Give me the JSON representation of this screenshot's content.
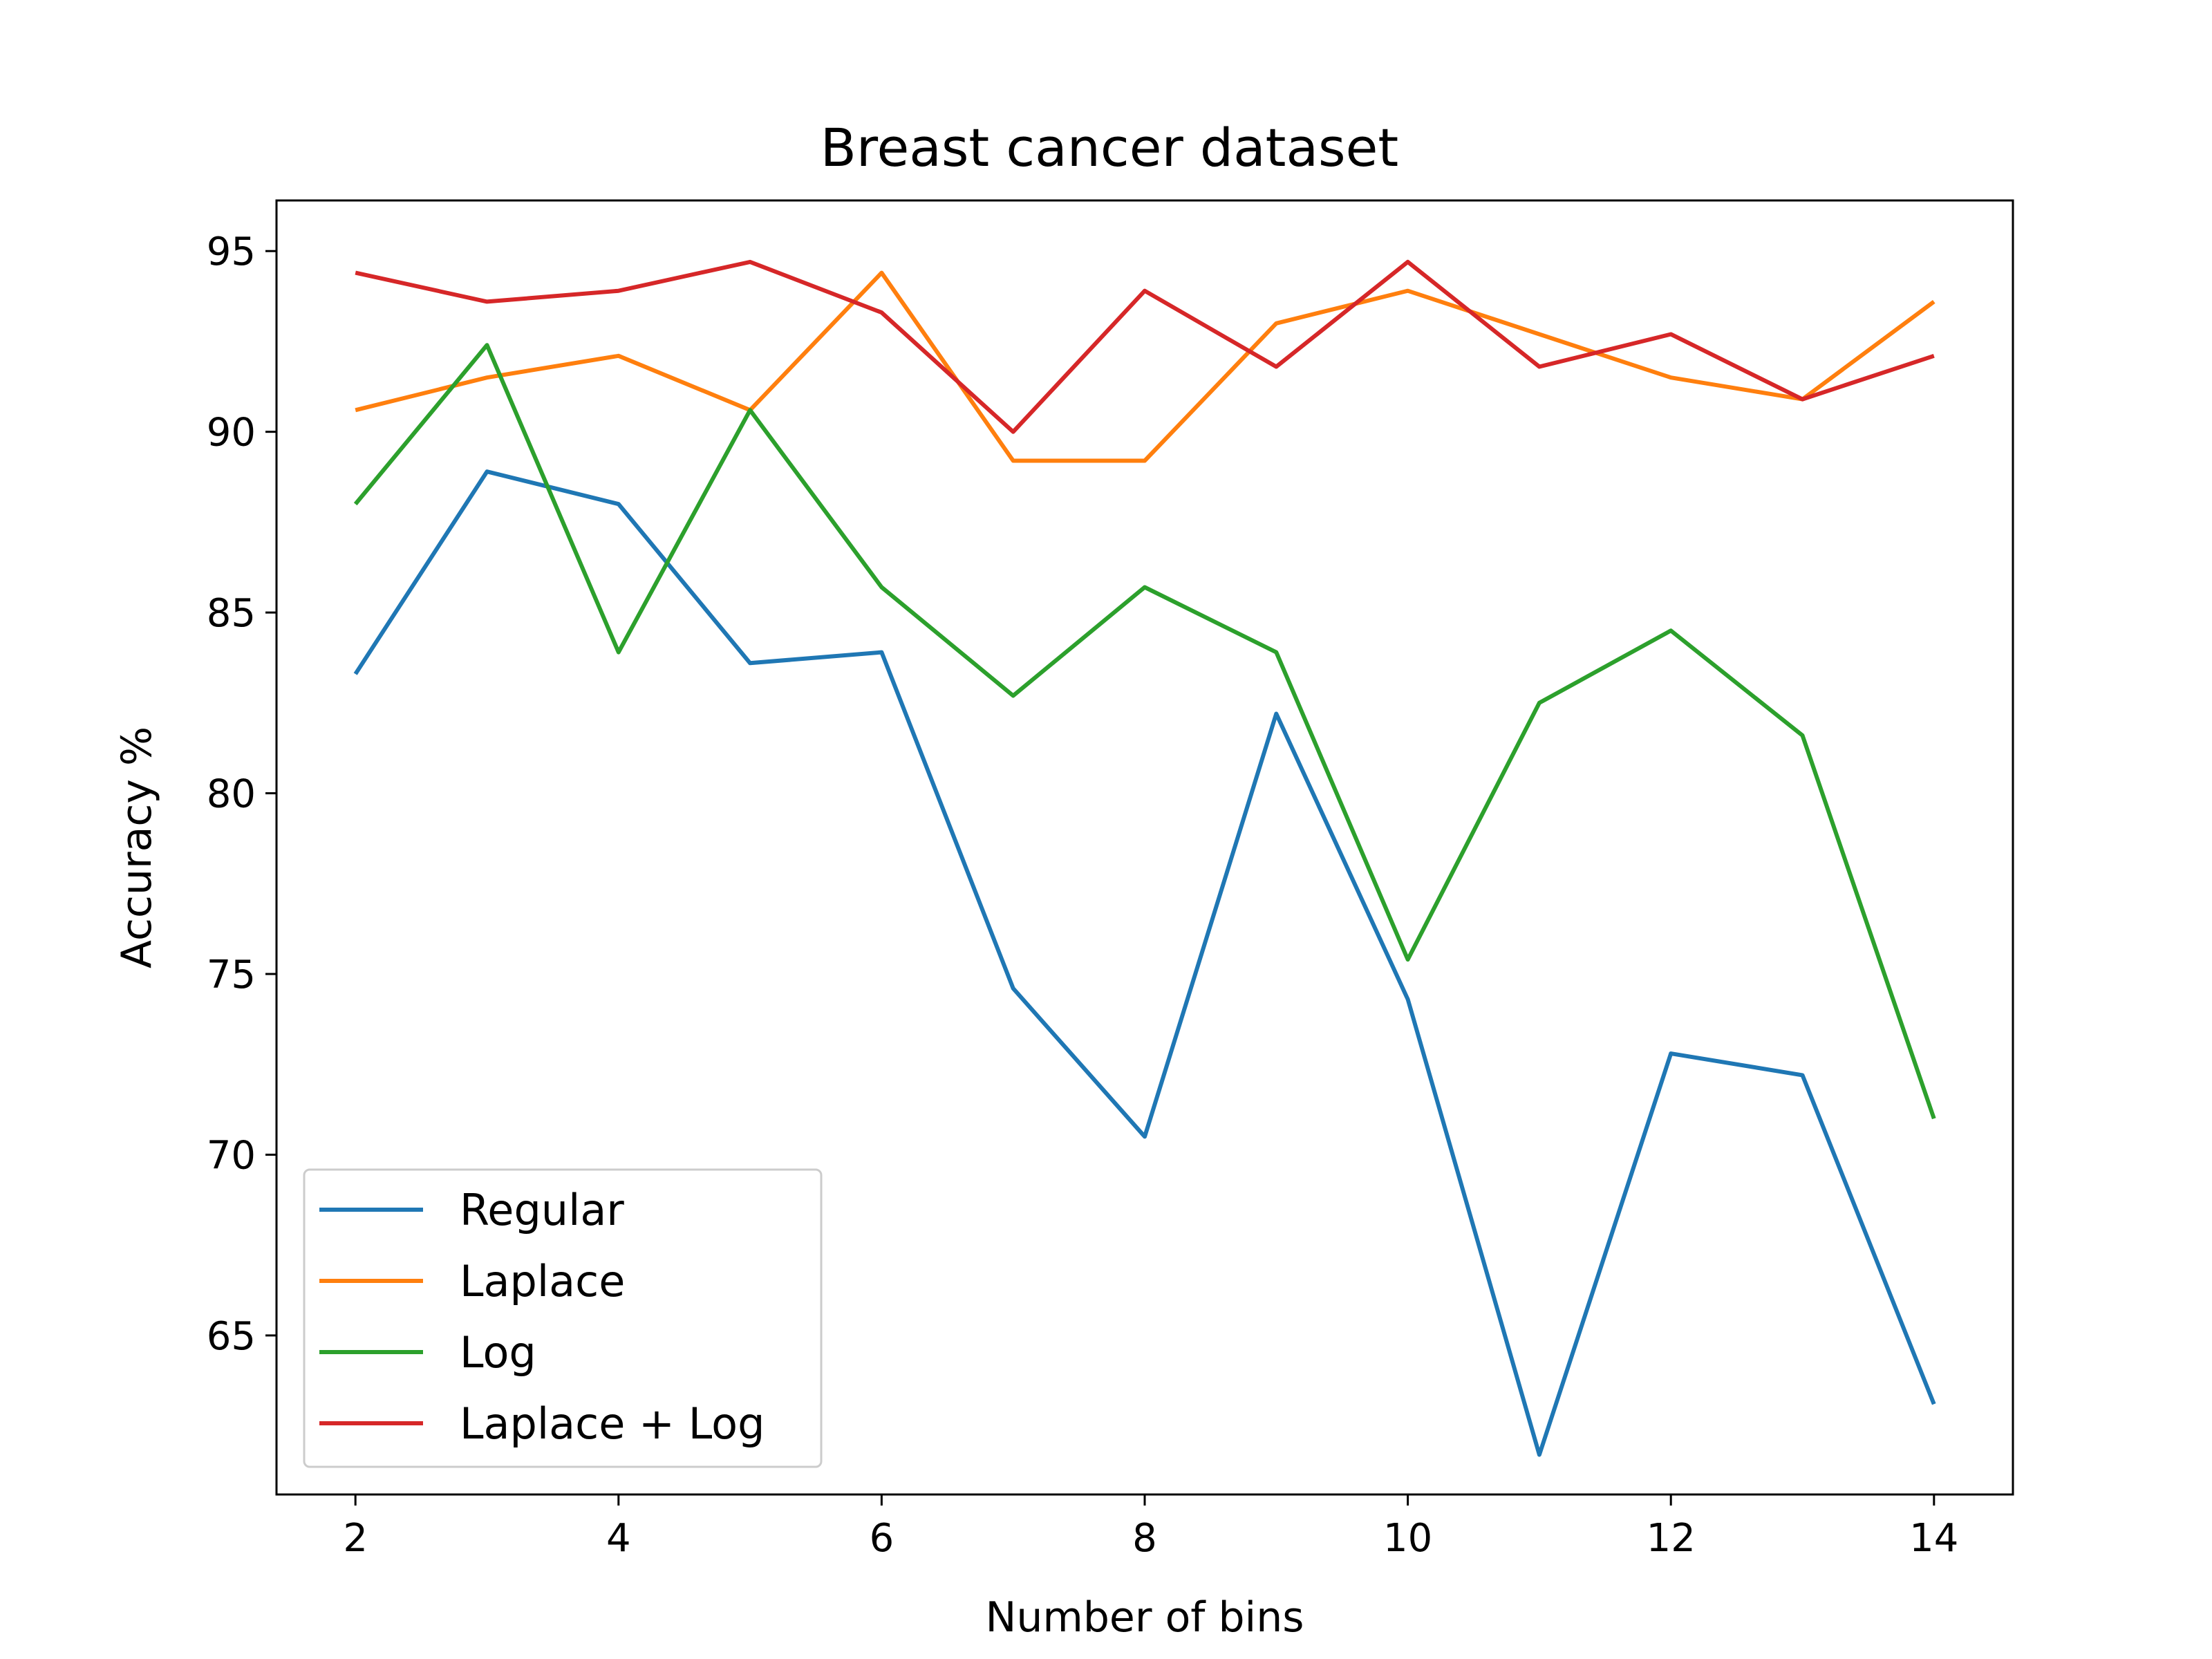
{
  "chart_data": {
    "type": "line",
    "title": "Breast cancer dataset",
    "xlabel": "Number of bins",
    "ylabel": "Accuracy %",
    "x": [
      2,
      3,
      4,
      5,
      6,
      7,
      8,
      9,
      10,
      11,
      12,
      13,
      14
    ],
    "xlim": [
      1.4,
      14.6
    ],
    "ylim": [
      60.6,
      96.4
    ],
    "xticks": [
      2,
      4,
      6,
      8,
      10,
      12,
      14
    ],
    "yticks": [
      65,
      70,
      75,
      80,
      85,
      90,
      95
    ],
    "grid": false,
    "legend_position": "lower-left",
    "series": [
      {
        "name": "Regular",
        "color": "#1f77b4",
        "values": [
          83.3,
          88.9,
          88.0,
          83.6,
          83.9,
          74.6,
          70.5,
          82.2,
          74.3,
          61.7,
          72.8,
          72.2,
          63.1
        ]
      },
      {
        "name": "Laplace",
        "color": "#ff7f0e",
        "values": [
          90.6,
          91.5,
          92.1,
          90.6,
          94.4,
          89.2,
          89.2,
          93.0,
          93.9,
          92.7,
          91.5,
          90.9,
          93.6
        ]
      },
      {
        "name": "Log",
        "color": "#2ca02c",
        "values": [
          88.0,
          92.4,
          83.9,
          90.6,
          85.7,
          82.7,
          85.7,
          83.9,
          75.4,
          82.5,
          84.5,
          81.6,
          71.0
        ]
      },
      {
        "name": "Laplace + Log",
        "color": "#d62728",
        "values": [
          94.4,
          93.6,
          93.9,
          94.7,
          93.3,
          90.0,
          93.9,
          91.8,
          94.7,
          91.8,
          92.7,
          90.9,
          92.1
        ]
      }
    ]
  }
}
